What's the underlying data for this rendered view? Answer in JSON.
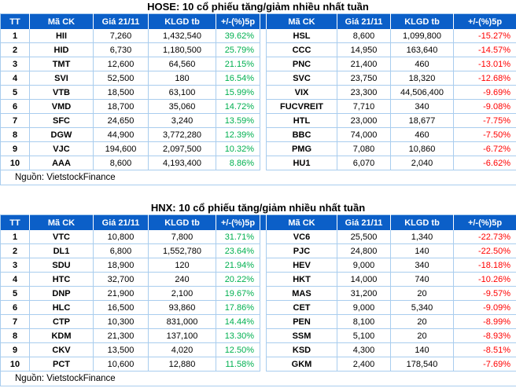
{
  "colors": {
    "header_blue": "#0b5fc8",
    "grid_light_blue": "#a9cdee",
    "positive_green": "#00b050",
    "negative_red": "#ff0000",
    "text_black": "#000000",
    "header_text_white": "#ffffff"
  },
  "chart_data": [
    {
      "type": "table",
      "title": "HOSE: 10 cổ phiếu tăng/giảm nhiều nhất tuần",
      "columns": [
        "TT",
        "Mã CK",
        "Giá 21/11",
        "KLGD tb",
        "+/-(%)5p",
        "Mã CK",
        "Giá 21/11",
        "KLGD tb",
        "+/-(%)5p"
      ],
      "rows": [
        [
          "1",
          "HII",
          "7,260",
          "1,432,540",
          "39.62%",
          "HSL",
          "8,600",
          "1,099,800",
          "-15.27%"
        ],
        [
          "2",
          "HID",
          "6,730",
          "1,180,500",
          "25.79%",
          "CCC",
          "14,950",
          "163,640",
          "-14.57%"
        ],
        [
          "3",
          "TMT",
          "12,600",
          "64,560",
          "21.15%",
          "PNC",
          "21,400",
          "460",
          "-13.01%"
        ],
        [
          "4",
          "SVI",
          "52,500",
          "180",
          "16.54%",
          "SVC",
          "23,750",
          "18,320",
          "-12.68%"
        ],
        [
          "5",
          "VTB",
          "18,500",
          "63,100",
          "15.99%",
          "VIX",
          "23,300",
          "44,506,400",
          "-9.69%"
        ],
        [
          "6",
          "VMD",
          "18,700",
          "35,060",
          "14.72%",
          "FUCVREIT",
          "7,710",
          "340",
          "-9.08%"
        ],
        [
          "7",
          "SFC",
          "24,650",
          "3,240",
          "13.59%",
          "HTL",
          "23,000",
          "18,677",
          "-7.75%"
        ],
        [
          "8",
          "DGW",
          "44,900",
          "3,772,280",
          "12.39%",
          "BBC",
          "74,000",
          "460",
          "-7.50%"
        ],
        [
          "9",
          "VJC",
          "194,600",
          "2,097,500",
          "10.32%",
          "PMG",
          "7,080",
          "10,860",
          "-6.72%"
        ],
        [
          "10",
          "AAA",
          "8,600",
          "4,193,400",
          "8.86%",
          "HU1",
          "6,070",
          "2,040",
          "-6.62%"
        ]
      ],
      "source": "Nguồn: VietstockFinance"
    },
    {
      "type": "table",
      "title": "HNX: 10 cổ phiếu tăng/giảm nhiều nhất tuần",
      "columns": [
        "TT",
        "Mã CK",
        "Giá 21/11",
        "KLGD tb",
        "+/-(%)5p",
        "Mã CK",
        "Giá 21/11",
        "KLGD tb",
        "+/-(%)5p"
      ],
      "rows": [
        [
          "1",
          "VTC",
          "10,800",
          "7,800",
          "31.71%",
          "VC6",
          "25,500",
          "1,340",
          "-22.73%"
        ],
        [
          "2",
          "DL1",
          "6,800",
          "1,552,780",
          "23.64%",
          "PJC",
          "24,800",
          "140",
          "-22.50%"
        ],
        [
          "3",
          "SDU",
          "18,900",
          "120",
          "21.94%",
          "HEV",
          "9,000",
          "340",
          "-18.18%"
        ],
        [
          "4",
          "HTC",
          "32,700",
          "240",
          "20.22%",
          "HKT",
          "14,000",
          "740",
          "-10.26%"
        ],
        [
          "5",
          "DNP",
          "21,900",
          "2,100",
          "19.67%",
          "MAS",
          "31,200",
          "20",
          "-9.57%"
        ],
        [
          "6",
          "HLC",
          "16,500",
          "93,860",
          "17.86%",
          "CET",
          "9,000",
          "5,340",
          "-9.09%"
        ],
        [
          "7",
          "CTP",
          "10,300",
          "831,000",
          "14.44%",
          "PEN",
          "8,100",
          "20",
          "-8.99%"
        ],
        [
          "8",
          "KDM",
          "21,300",
          "137,100",
          "13.30%",
          "SSM",
          "5,100",
          "20",
          "-8.93%"
        ],
        [
          "9",
          "CKV",
          "13,500",
          "4,020",
          "12.50%",
          "KSD",
          "4,300",
          "140",
          "-8.51%"
        ],
        [
          "10",
          "PCT",
          "10,600",
          "12,880",
          "11.58%",
          "GKM",
          "2,400",
          "178,540",
          "-7.69%"
        ]
      ],
      "source": "Nguồn: VietstockFinance"
    }
  ]
}
